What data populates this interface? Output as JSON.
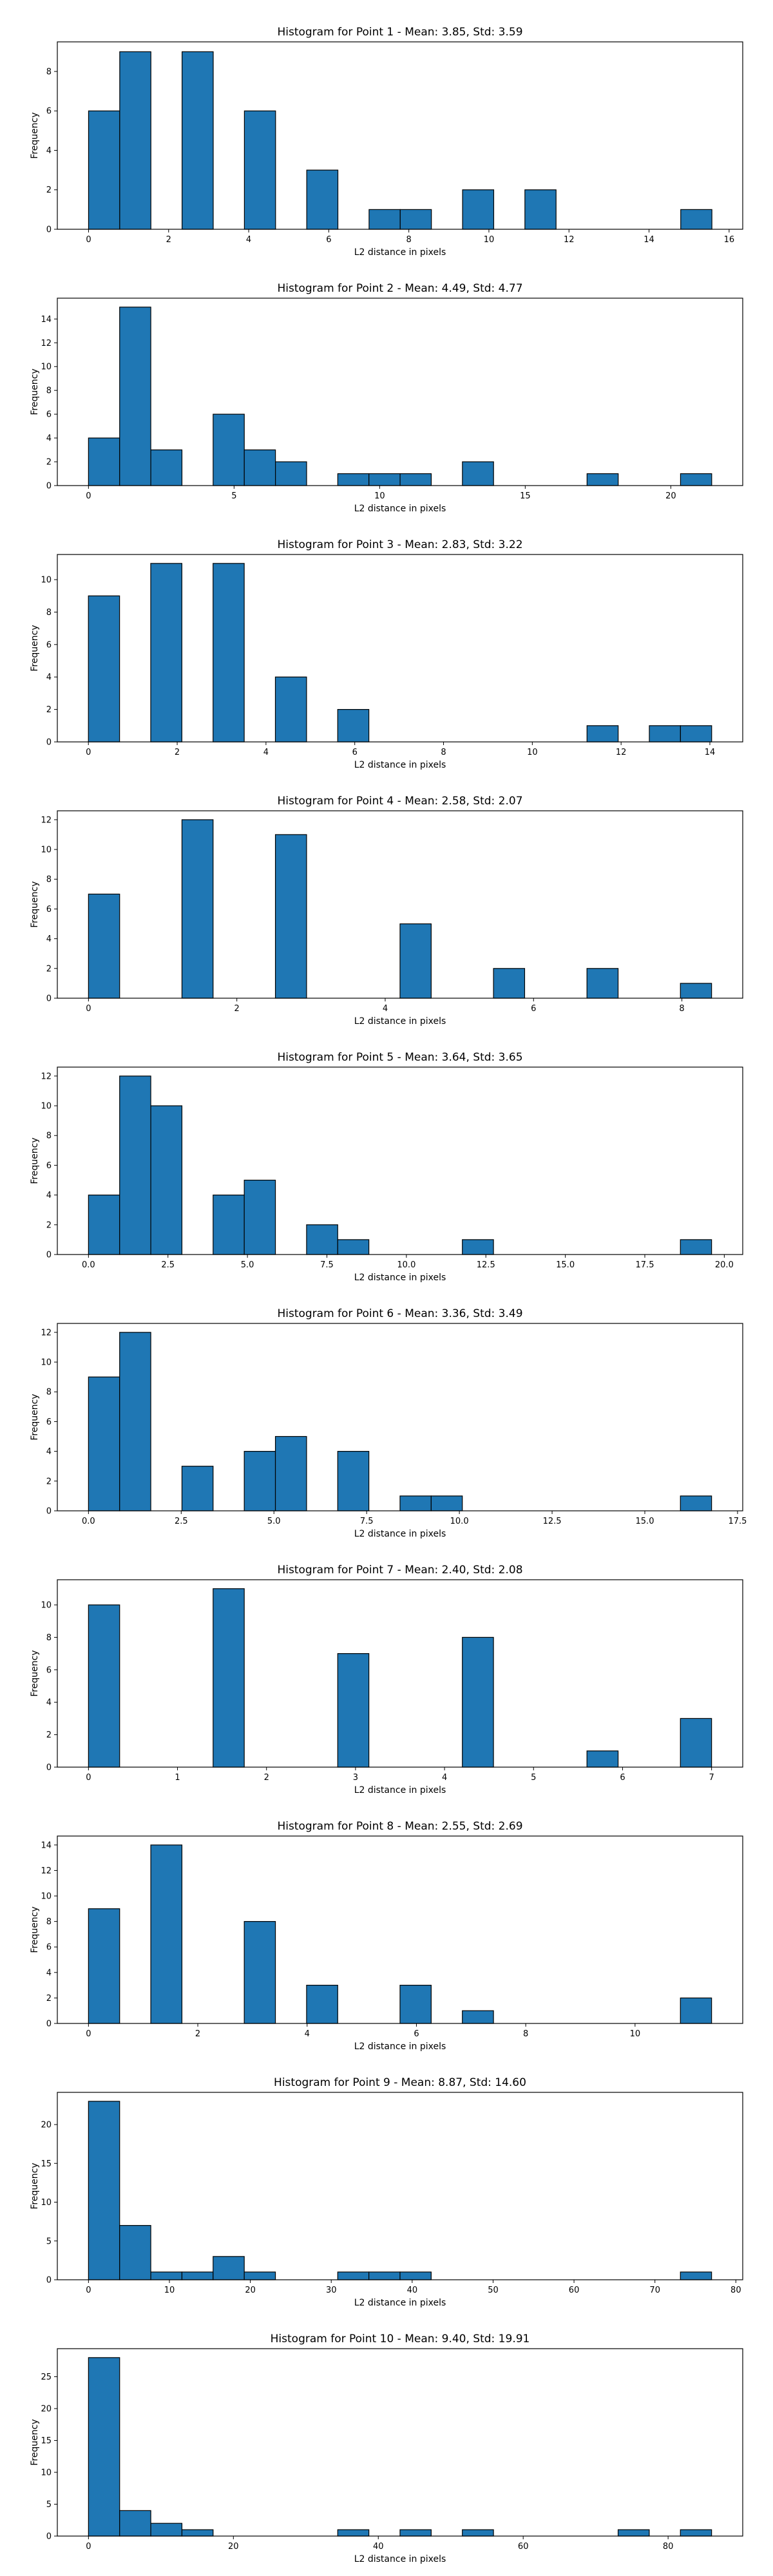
{
  "style": {
    "bar_color": "#1f77b4",
    "edge_color": "#000000",
    "background": "#ffffff"
  },
  "chart_data": [
    {
      "type": "bar",
      "title": "Histogram for Point 1 - Mean: 3.85, Std: 3.59",
      "xlabel": "L2 distance in pixels",
      "ylabel": "Frequency",
      "xlim": [
        -0.78,
        16.34
      ],
      "ylim": [
        0,
        9.5
      ],
      "xticks": [
        0,
        2,
        4,
        6,
        8,
        10,
        12,
        14,
        16
      ],
      "yticks": [
        0,
        2,
        4,
        6,
        8
      ],
      "bins": {
        "start": 0.0,
        "width": 0.7785,
        "counts": [
          6,
          9,
          0,
          9,
          0,
          6,
          0,
          3,
          0,
          1,
          1,
          0,
          2,
          0,
          2,
          0,
          0,
          0,
          0,
          1
        ]
      },
      "grid": false
    },
    {
      "type": "bar",
      "title": "Histogram for Point 2 - Mean: 4.49, Std: 4.77",
      "xlabel": "L2 distance in pixels",
      "ylabel": "Frequency",
      "xlim": [
        -1.07,
        22.47
      ],
      "ylim": [
        0,
        15.75
      ],
      "xticks": [
        0,
        5,
        10,
        15,
        20
      ],
      "yticks": [
        0,
        2,
        4,
        6,
        8,
        10,
        12,
        14
      ],
      "bins": {
        "start": 0.0,
        "width": 1.0702,
        "counts": [
          4,
          15,
          3,
          0,
          6,
          3,
          2,
          0,
          1,
          1,
          1,
          0,
          2,
          0,
          0,
          0,
          1,
          0,
          0,
          1
        ]
      },
      "grid": false
    },
    {
      "type": "bar",
      "title": "Histogram for Point 3 - Mean: 2.83, Std: 3.22",
      "xlabel": "L2 distance in pixels",
      "ylabel": "Frequency",
      "xlim": [
        -0.7,
        14.74
      ],
      "ylim": [
        0,
        11.55
      ],
      "xticks": [
        0,
        2,
        4,
        6,
        8,
        10,
        12,
        14
      ],
      "yticks": [
        0,
        2,
        4,
        6,
        8,
        10
      ],
      "bins": {
        "start": 0.0,
        "width": 0.702,
        "counts": [
          9,
          0,
          11,
          0,
          11,
          0,
          4,
          0,
          2,
          0,
          0,
          0,
          0,
          0,
          0,
          0,
          1,
          0,
          1,
          1
        ]
      },
      "grid": false
    },
    {
      "type": "bar",
      "title": "Histogram for Point 4 - Mean: 2.58, Std: 2.07",
      "xlabel": "L2 distance in pixels",
      "ylabel": "Frequency",
      "xlim": [
        -0.42,
        8.82
      ],
      "ylim": [
        0,
        12.6
      ],
      "xticks": [
        0,
        2,
        4,
        6,
        8
      ],
      "yticks": [
        0,
        2,
        4,
        6,
        8,
        10,
        12
      ],
      "bins": {
        "start": 0.0,
        "width": 0.42,
        "counts": [
          7,
          0,
          0,
          12,
          0,
          0,
          11,
          0,
          0,
          0,
          5,
          0,
          0,
          2,
          0,
          0,
          2,
          0,
          0,
          1
        ]
      },
      "grid": false
    },
    {
      "type": "bar",
      "title": "Histogram for Point 5 - Mean: 3.64, Std: 3.65",
      "xlabel": "L2 distance in pixels",
      "ylabel": "Frequency",
      "xlim": [
        -0.98,
        20.58
      ],
      "ylim": [
        0,
        12.6
      ],
      "xticks": [
        0.0,
        2.5,
        5.0,
        7.5,
        10.0,
        12.5,
        15.0,
        17.5,
        20.0
      ],
      "yticks": [
        0,
        2,
        4,
        6,
        8,
        10,
        12
      ],
      "bins": {
        "start": 0.0,
        "width": 0.98,
        "counts": [
          4,
          12,
          10,
          0,
          4,
          5,
          0,
          2,
          1,
          0,
          0,
          0,
          1,
          0,
          0,
          0,
          0,
          0,
          0,
          1
        ]
      },
      "grid": false
    },
    {
      "type": "bar",
      "title": "Histogram for Point 6 - Mean: 3.36, Std: 3.49",
      "xlabel": "L2 distance in pixels",
      "ylabel": "Frequency",
      "xlim": [
        -0.84,
        17.64
      ],
      "ylim": [
        0,
        12.6
      ],
      "xticks": [
        0.0,
        2.5,
        5.0,
        7.5,
        10.0,
        12.5,
        15.0,
        17.5
      ],
      "yticks": [
        0,
        2,
        4,
        6,
        8,
        10,
        12
      ],
      "bins": {
        "start": 0.0,
        "width": 0.84,
        "counts": [
          9,
          12,
          0,
          3,
          0,
          4,
          5,
          0,
          4,
          0,
          1,
          1,
          0,
          0,
          0,
          0,
          0,
          0,
          0,
          1
        ]
      },
      "grid": false
    },
    {
      "type": "bar",
      "title": "Histogram for Point 7 - Mean: 2.40, Std: 2.08",
      "xlabel": "L2 distance in pixels",
      "ylabel": "Frequency",
      "xlim": [
        -0.35,
        7.35
      ],
      "ylim": [
        0,
        11.55
      ],
      "xticks": [
        0,
        1,
        2,
        3,
        4,
        5,
        6,
        7
      ],
      "yticks": [
        0,
        2,
        4,
        6,
        8,
        10
      ],
      "bins": {
        "start": 0.0,
        "width": 0.35,
        "counts": [
          10,
          0,
          0,
          0,
          11,
          0,
          0,
          0,
          7,
          0,
          0,
          0,
          8,
          0,
          0,
          0,
          1,
          0,
          0,
          3
        ]
      },
      "grid": false
    },
    {
      "type": "bar",
      "title": "Histogram for Point 8 - Mean: 2.55, Std: 2.69",
      "xlabel": "L2 distance in pixels",
      "ylabel": "Frequency",
      "xlim": [
        -0.57,
        11.97
      ],
      "ylim": [
        0,
        14.7
      ],
      "xticks": [
        0,
        2,
        4,
        6,
        8,
        10
      ],
      "yticks": [
        0,
        2,
        4,
        6,
        8,
        10,
        12,
        14
      ],
      "bins": {
        "start": 0.0,
        "width": 0.57,
        "counts": [
          9,
          0,
          14,
          0,
          0,
          8,
          0,
          3,
          0,
          0,
          3,
          0,
          1,
          0,
          0,
          0,
          0,
          0,
          0,
          2
        ]
      },
      "grid": false
    },
    {
      "type": "bar",
      "title": "Histogram for Point 9 - Mean: 8.87, Std: 14.60",
      "xlabel": "L2 distance in pixels",
      "ylabel": "Frequency",
      "xlim": [
        -3.85,
        80.85
      ],
      "ylim": [
        0,
        24.15
      ],
      "xticks": [
        0,
        10,
        20,
        30,
        40,
        50,
        60,
        70,
        80
      ],
      "yticks": [
        0,
        5,
        10,
        15,
        20
      ],
      "bins": {
        "start": 0.0,
        "width": 3.85,
        "counts": [
          23,
          7,
          1,
          1,
          3,
          1,
          0,
          0,
          1,
          1,
          1,
          0,
          0,
          0,
          0,
          0,
          0,
          0,
          0,
          1
        ]
      },
      "grid": false
    },
    {
      "type": "bar",
      "title": "Histogram for Point 10 - Mean: 9.40, Std: 19.91",
      "xlabel": "L2 distance in pixels",
      "ylabel": "Frequency",
      "xlim": [
        -4.3,
        90.3
      ],
      "ylim": [
        0,
        29.4
      ],
      "xticks": [
        0,
        20,
        40,
        60,
        80
      ],
      "yticks": [
        0,
        5,
        10,
        15,
        20,
        25
      ],
      "bins": {
        "start": 0.0,
        "width": 4.3,
        "counts": [
          28,
          4,
          2,
          1,
          0,
          0,
          0,
          0,
          1,
          0,
          1,
          0,
          1,
          0,
          0,
          0,
          0,
          1,
          0,
          1
        ]
      },
      "grid": false
    }
  ]
}
